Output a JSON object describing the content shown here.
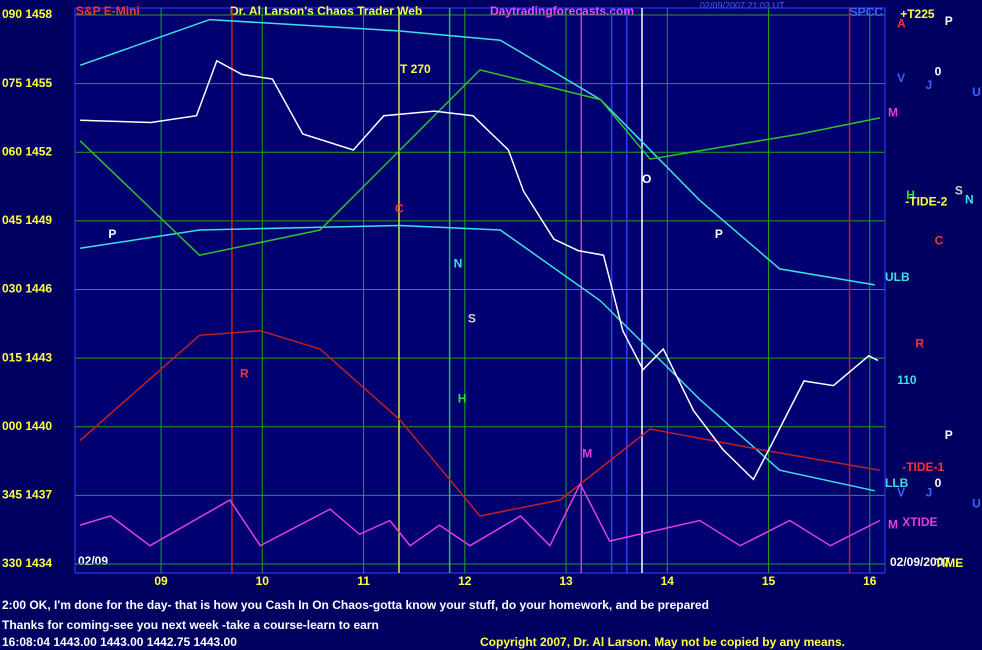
{
  "chart_data": {
    "type": "line",
    "title": "Dr. Al Larson's Chaos Trader Web",
    "instrument": "S&P E-Mini",
    "site": "Daytradingforecasts.com",
    "timestamp": "02/09/2007 21:03 UT",
    "date_left": "02/09",
    "date_right": "02/09/2007",
    "xlim": [
      8.15,
      16.15
    ],
    "xticks": [
      {
        "value": 9,
        "label": "09"
      },
      {
        "value": 10,
        "label": "10"
      },
      {
        "value": 11,
        "label": "11"
      },
      {
        "value": 12,
        "label": "12"
      },
      {
        "value": 13,
        "label": "13"
      },
      {
        "value": 14,
        "label": "14"
      },
      {
        "value": 15,
        "label": "15"
      },
      {
        "value": 16,
        "label": "16"
      }
    ],
    "ylim": [
      1434,
      1458
    ],
    "yticks": [
      {
        "value": 1458,
        "label": "090 1458"
      },
      {
        "value": 1455,
        "label": "075 1455"
      },
      {
        "value": 1452,
        "label": "060 1452"
      },
      {
        "value": 1449,
        "label": "045 1449"
      },
      {
        "value": 1446,
        "label": "030 1446"
      },
      {
        "value": 1443,
        "label": "015 1443"
      },
      {
        "value": 1440,
        "label": "000 1440"
      },
      {
        "value": 1437,
        "label": "345 1437"
      },
      {
        "value": 1434,
        "label": "330 1434"
      }
    ],
    "grid": true,
    "series": [
      {
        "color": "#40e0e0",
        "x": [
          8.2,
          9.48,
          11.36,
          12.35,
          13.34,
          14.32,
          15.11,
          16.05
        ],
        "values": [
          1455.8,
          1457.8,
          1457.3,
          1456.9,
          1454.3,
          1449.9,
          1446.9,
          1446.2
        ]
      },
      {
        "color": "#40e0e0",
        "x": [
          8.2,
          9.38,
          11.36,
          12.35,
          13.34,
          14.32,
          15.11,
          16.05
        ],
        "values": [
          1447.8,
          1448.6,
          1448.8,
          1448.6,
          1445.5,
          1441.2,
          1438.1,
          1437.2
        ]
      },
      {
        "color": "#30c030",
        "x": [
          8.2,
          9.38,
          10.57,
          11.36,
          12.15,
          13.34,
          13.83,
          15.31,
          16.1
        ],
        "values": [
          1452.5,
          1447.5,
          1448.6,
          1452.1,
          1455.6,
          1454.3,
          1451.7,
          1452.8,
          1453.5
        ]
      },
      {
        "color": "#c02020",
        "x": [
          8.2,
          9.38,
          9.98,
          10.57,
          11.36,
          12.15,
          12.94,
          13.83,
          14.92,
          16.1
        ],
        "values": [
          1439.4,
          1444.0,
          1444.2,
          1443.4,
          1440.3,
          1436.1,
          1436.8,
          1439.9,
          1439.0,
          1438.1
        ]
      },
      {
        "color": "#e040e0",
        "x": [
          8.2,
          8.5,
          8.89,
          9.68,
          9.98,
          10.67,
          10.96,
          11.26,
          11.46,
          11.75,
          12.05,
          12.55,
          12.84,
          13.14,
          13.43,
          14.32,
          14.72,
          15.21,
          15.61,
          16.1
        ],
        "values": [
          1435.7,
          1436.1,
          1434.8,
          1436.8,
          1434.8,
          1436.4,
          1435.3,
          1435.9,
          1434.8,
          1435.7,
          1434.8,
          1436.1,
          1434.8,
          1437.5,
          1435.0,
          1435.9,
          1434.8,
          1435.9,
          1434.8,
          1435.9
        ]
      },
      {
        "color": "#ffffff",
        "x": [
          8.2,
          8.9,
          9.35,
          9.55,
          9.8,
          10.1,
          10.4,
          10.9,
          11.2,
          11.7,
          12.08,
          12.43,
          12.58,
          12.88,
          13.12,
          13.37,
          13.56,
          13.76,
          13.96,
          14.26,
          14.55,
          14.85,
          15.05,
          15.35,
          15.64,
          15.99,
          16.08
        ],
        "values": [
          1453.4,
          1453.3,
          1453.6,
          1456.0,
          1455.4,
          1455.2,
          1452.8,
          1452.1,
          1453.6,
          1453.8,
          1453.6,
          1452.1,
          1450.3,
          1448.2,
          1447.7,
          1447.5,
          1444.2,
          1442.5,
          1443.4,
          1440.7,
          1439.0,
          1437.7,
          1439.4,
          1442.0,
          1441.8,
          1443.1,
          1442.9
        ]
      }
    ],
    "annotations": [
      {
        "text": "T 270",
        "x": 11.36,
        "y": 1455.6,
        "color": "#ffff40"
      },
      {
        "text": "P",
        "x": 8.48,
        "y": 1448.4,
        "color": "#ffffff"
      },
      {
        "text": "C",
        "x": 11.31,
        "y": 1449.5,
        "color": "#ff3030"
      },
      {
        "text": "N",
        "x": 11.89,
        "y": 1447.1,
        "color": "#40e0e0"
      },
      {
        "text": "S",
        "x": 12.03,
        "y": 1444.7,
        "color": "#d0d0d0"
      },
      {
        "text": "H",
        "x": 11.93,
        "y": 1441.2,
        "color": "#30e030"
      },
      {
        "text": "R",
        "x": 9.78,
        "y": 1442.3,
        "color": "#ff3030"
      },
      {
        "text": "M",
        "x": 13.16,
        "y": 1438.8,
        "color": "#e040e0"
      },
      {
        "text": "O",
        "x": 13.75,
        "y": 1450.8,
        "color": "#ffffff"
      },
      {
        "text": "P",
        "x": 14.47,
        "y": 1448.4,
        "color": "#ffffff"
      },
      {
        "text": "SPCC",
        "x": 15.8,
        "y": 1458.1,
        "color": "#4060ff"
      },
      {
        "text": "+T225",
        "x": 16.3,
        "y": 1458.0,
        "color": "#ffff40"
      },
      {
        "text": "A",
        "x": 16.27,
        "y": 1457.6,
        "color": "#ff3030"
      },
      {
        "text": "P",
        "x": 16.74,
        "y": 1457.7,
        "color": "#ffffff"
      },
      {
        "text": "0",
        "x": 16.64,
        "y": 1455.5,
        "color": "#ffffff"
      },
      {
        "text": "V",
        "x": 16.27,
        "y": 1455.2,
        "color": "#4060ff"
      },
      {
        "text": "J",
        "x": 16.55,
        "y": 1454.9,
        "color": "#4060ff"
      },
      {
        "text": "U",
        "x": 17.01,
        "y": 1454.6,
        "color": "#4060ff"
      },
      {
        "text": "M",
        "x": 16.18,
        "y": 1453.7,
        "color": "#e040e0"
      },
      {
        "text": "H",
        "x": 16.36,
        "y": 1450.1,
        "color": "#30e030"
      },
      {
        "text": "S",
        "x": 16.84,
        "y": 1450.3,
        "color": "#d0d0d0"
      },
      {
        "text": "N",
        "x": 16.94,
        "y": 1449.9,
        "color": "#40e0e0"
      },
      {
        "text": "-TIDE-2",
        "x": 16.35,
        "y": 1449.8,
        "color": "#ffff40"
      },
      {
        "text": "C",
        "x": 16.64,
        "y": 1448.1,
        "color": "#ff3030"
      },
      {
        "text": "ULB",
        "x": 16.15,
        "y": 1446.5,
        "color": "#40e0e0"
      },
      {
        "text": "R",
        "x": 16.45,
        "y": 1443.6,
        "color": "#ff3030"
      },
      {
        "text": "110",
        "x": 16.27,
        "y": 1442.0,
        "color": "#40e0e0"
      },
      {
        "text": "P",
        "x": 16.74,
        "y": 1439.6,
        "color": "#ffffff"
      },
      {
        "text": "-TIDE-1",
        "x": 16.32,
        "y": 1438.2,
        "color": "#ff3030"
      },
      {
        "text": "LLB",
        "x": 16.15,
        "y": 1437.5,
        "color": "#40e0e0"
      },
      {
        "text": "0",
        "x": 16.64,
        "y": 1437.5,
        "color": "#ffffff"
      },
      {
        "text": "V",
        "x": 16.27,
        "y": 1437.1,
        "color": "#4060ff"
      },
      {
        "text": "J",
        "x": 16.55,
        "y": 1437.1,
        "color": "#4060ff"
      },
      {
        "text": "U",
        "x": 17.01,
        "y": 1436.6,
        "color": "#4060ff"
      },
      {
        "text": "M",
        "x": 16.18,
        "y": 1435.7,
        "color": "#e040e0"
      },
      {
        "text": "XTIDE",
        "x": 16.32,
        "y": 1435.8,
        "color": "#e040e0"
      },
      {
        "text": "TIME",
        "x": 16.64,
        "y": 1434.0,
        "color": "#ffff40"
      }
    ],
    "markers": [
      {
        "x": 9.7,
        "color": "#c02020"
      },
      {
        "x": 11.35,
        "color": "#e0e040"
      },
      {
        "x": 11.85,
        "color": "#30c030"
      },
      {
        "x": 13.15,
        "color": "#c040c0"
      },
      {
        "x": 13.45,
        "color": "#3040ff"
      },
      {
        "x": 13.6,
        "color": "#3040ff"
      },
      {
        "x": 13.75,
        "color": "#ffffff"
      },
      {
        "x": 15.8,
        "color": "#c02020"
      }
    ],
    "footer": [
      "2:00 OK, I'm done for the day- that is how you Cash In On Chaos-gotta know your stuff, do your homework, and be prepared",
      "Thanks for coming-see you next week -take a course-learn to earn",
      "16:08:04  1443.00 1443.00 1442.75 1443.00"
    ],
    "copyright": "Copyright 2007, Dr. Al Larson. May not be copied by any means."
  }
}
